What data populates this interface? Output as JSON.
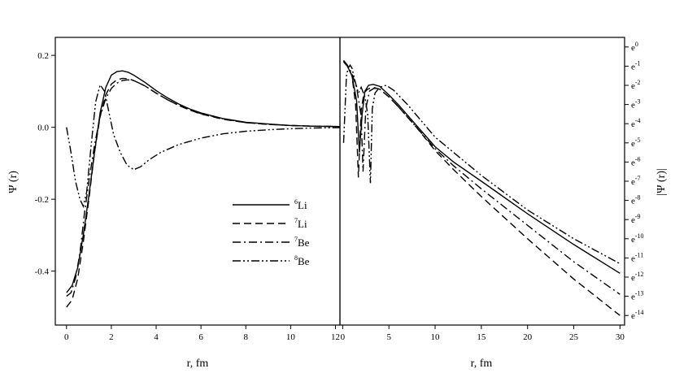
{
  "chart_data": [
    {
      "type": "line",
      "panel": "left",
      "xlabel": "r, fm",
      "ylabel": "Ψ (r)",
      "xlim": [
        -0.5,
        12.2
      ],
      "ylim": [
        -0.55,
        0.25
      ],
      "xticks": [
        0,
        2,
        4,
        6,
        8,
        10,
        12
      ],
      "yticks": [
        {
          "value": 0.2,
          "label": "0.2"
        },
        {
          "value": 0.0,
          "label": "0.0"
        },
        {
          "value": -0.2,
          "label": "-0.2"
        },
        {
          "value": -0.4,
          "label": "-0.4"
        }
      ],
      "legend": {
        "placement": "center-right",
        "entries": [
          {
            "base": "6",
            "text": "Li",
            "dash": "solid"
          },
          {
            "base": "7",
            "text": "Li",
            "dash": "dash"
          },
          {
            "base": "7",
            "text": "Be",
            "dash": "dashdot"
          },
          {
            "base": "8",
            "text": "Be",
            "dash": "dashdotdot"
          }
        ]
      },
      "series": [
        {
          "name": "6Li",
          "dash": "solid",
          "x": [
            0,
            0.25,
            0.5,
            0.75,
            1.0,
            1.25,
            1.5,
            1.75,
            2.0,
            2.25,
            2.5,
            2.75,
            3.0,
            3.5,
            4.0,
            4.5,
            5.0,
            5.5,
            6.0,
            7.0,
            8.0,
            9.0,
            10.0,
            11.0,
            12.2
          ],
          "y": [
            -0.46,
            -0.44,
            -0.39,
            -0.3,
            -0.19,
            -0.07,
            0.04,
            0.11,
            0.145,
            0.155,
            0.157,
            0.153,
            0.145,
            0.125,
            0.102,
            0.082,
            0.065,
            0.051,
            0.04,
            0.024,
            0.014,
            0.009,
            0.005,
            0.003,
            0.002
          ]
        },
        {
          "name": "7Li",
          "dash": "dash",
          "x": [
            0,
            0.25,
            0.5,
            0.75,
            1.0,
            1.25,
            1.5,
            1.75,
            2.0,
            2.25,
            2.5,
            2.75,
            3.0,
            3.5,
            4.0,
            4.5,
            5.0,
            5.5,
            6.0,
            7.0,
            8.0,
            9.0,
            10.0,
            11.0,
            12.2
          ],
          "y": [
            -0.5,
            -0.48,
            -0.42,
            -0.32,
            -0.2,
            -0.07,
            0.03,
            0.09,
            0.12,
            0.132,
            0.136,
            0.135,
            0.13,
            0.115,
            0.095,
            0.077,
            0.061,
            0.048,
            0.037,
            0.022,
            0.013,
            0.008,
            0.005,
            0.003,
            0.002
          ]
        },
        {
          "name": "7Be",
          "dash": "dashdot",
          "x": [
            0,
            0.2,
            0.4,
            0.6,
            0.8,
            1.0,
            1.25,
            1.5,
            1.75,
            2.0,
            2.25,
            2.5,
            2.75,
            3.0,
            3.5,
            4.0,
            4.5,
            5.0,
            5.5,
            6.0,
            7.0,
            8.0,
            9.0,
            10.0,
            11.0,
            12.2
          ],
          "y": [
            -0.47,
            -0.46,
            -0.42,
            -0.35,
            -0.24,
            -0.15,
            -0.05,
            0.03,
            0.08,
            0.108,
            0.123,
            0.13,
            0.132,
            0.13,
            0.115,
            0.095,
            0.077,
            0.061,
            0.048,
            0.038,
            0.023,
            0.013,
            0.008,
            0.005,
            0.003,
            0.002
          ]
        },
        {
          "name": "8Be",
          "dash": "dashdotdot",
          "x": [
            0,
            0.2,
            0.4,
            0.6,
            0.75,
            0.9,
            1.1,
            1.3,
            1.5,
            1.7,
            1.9,
            2.1,
            2.4,
            2.7,
            3.0,
            3.3,
            3.7,
            4.2,
            5.0,
            6.0,
            7.0,
            8.0,
            9.0,
            10.0,
            11.0,
            12.2
          ],
          "y": [
            0.0,
            -0.07,
            -0.15,
            -0.2,
            -0.22,
            -0.18,
            -0.05,
            0.07,
            0.118,
            0.1,
            0.04,
            -0.02,
            -0.07,
            -0.105,
            -0.118,
            -0.11,
            -0.09,
            -0.07,
            -0.048,
            -0.03,
            -0.018,
            -0.011,
            -0.007,
            -0.004,
            -0.002,
            -0.001
          ]
        }
      ]
    },
    {
      "type": "line",
      "panel": "right",
      "xlabel": "r, fm",
      "ylabel": "|Ψ (r)|",
      "yscale": "log-e",
      "xlim": [
        -0.3,
        30.5
      ],
      "ylim_exponent": [
        -14,
        0
      ],
      "xticks": [
        0,
        5,
        10,
        15,
        20,
        25,
        30
      ],
      "yticks_exponent": [
        0,
        -1,
        -2,
        -3,
        -4,
        -5,
        -6,
        -7,
        -8,
        -9,
        -10,
        -11,
        -12,
        -13,
        -14
      ],
      "series": [
        {
          "name": "6Li",
          "dash": "solid",
          "x": [
            0.1,
            0.5,
            1.0,
            1.5,
            1.8,
            2.1,
            2.4,
            2.8,
            3.3,
            4.0,
            5.0,
            6.0,
            8.0,
            10.0,
            12.0,
            15.0,
            20.0,
            25.0,
            30.0
          ],
          "y": [
            -0.78,
            -1.0,
            -1.5,
            -2.8,
            -5.5,
            -3.5,
            -2.3,
            -2.0,
            -1.95,
            -2.05,
            -2.5,
            -3.0,
            -4.1,
            -5.2,
            -6.0,
            -7.0,
            -8.7,
            -10.3,
            -11.8
          ]
        },
        {
          "name": "7Li",
          "dash": "dash",
          "x": [
            0.1,
            0.5,
            1.0,
            1.4,
            1.7,
            2.0,
            2.3,
            2.7,
            3.3,
            4.0,
            5.0,
            6.0,
            8.0,
            10.0,
            12.0,
            15.0,
            20.0,
            25.0,
            30.0
          ],
          "y": [
            -0.7,
            -0.95,
            -1.5,
            -3.0,
            -6.8,
            -3.3,
            -2.4,
            -2.2,
            -2.1,
            -2.2,
            -2.6,
            -3.1,
            -4.2,
            -5.4,
            -6.4,
            -7.8,
            -10.0,
            -12.1,
            -14.0
          ]
        },
        {
          "name": "7Be",
          "dash": "dashdot",
          "x": [
            0.1,
            0.5,
            1.0,
            1.5,
            2.0,
            2.2,
            2.5,
            2.9,
            3.4,
            4.0,
            5.0,
            6.0,
            8.0,
            10.0,
            12.0,
            15.0,
            20.0,
            25.0,
            30.0
          ],
          "y": [
            -0.72,
            -0.95,
            -1.4,
            -2.1,
            -3.6,
            -6.5,
            -3.2,
            -2.3,
            -2.15,
            -2.2,
            -2.6,
            -3.1,
            -4.2,
            -5.3,
            -6.2,
            -7.4,
            -9.3,
            -11.2,
            -12.9
          ]
        },
        {
          "name": "8Be",
          "dash": "dashdotdot",
          "x": [
            0.1,
            0.4,
            0.6,
            0.8,
            1.0,
            1.4,
            1.7,
            2.0,
            2.4,
            2.7,
            3.0,
            3.2,
            3.5,
            4.0,
            4.7,
            5.5,
            7.0,
            10.0,
            15.0,
            20.0,
            25.0,
            30.0
          ],
          "y": [
            -5.0,
            -1.5,
            -1.1,
            -0.95,
            -1.1,
            -1.9,
            -2.4,
            -2.1,
            -2.6,
            -3.5,
            -7.1,
            -3.2,
            -2.4,
            -2.1,
            -2.0,
            -2.25,
            -3.0,
            -4.7,
            -6.7,
            -8.5,
            -10.0,
            -11.3
          ]
        }
      ]
    }
  ]
}
